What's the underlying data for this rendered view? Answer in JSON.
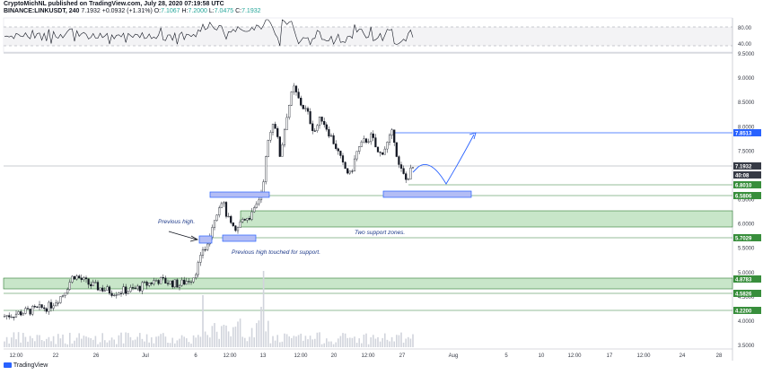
{
  "header": {
    "publisher_line": "CryptoMichNL published on TradingView.com, July 28, 2020 07:19:58 UTC",
    "symbol": "BINANCE:LINKUSDT, 240",
    "last": "7.1932",
    "change": "+0.0932 (+1.31%)",
    "o_label": "O:",
    "o_value": "7.1067",
    "h_label": "H:",
    "h_value": "7.2000",
    "l_label": "L:",
    "l_value": "7.0475",
    "c_label": "C:",
    "c_value": "7.1932"
  },
  "rsi_axis": [
    "80.00",
    "40.00"
  ],
  "price_axis": {
    "ticks": [
      "9.5000",
      "9.0000",
      "8.5000",
      "8.0000",
      "7.5000",
      "7.0000",
      "6.5000",
      "6.0000",
      "5.5000",
      "5.0000",
      "4.5000",
      "4.0000",
      "3.5000"
    ],
    "labels": [
      {
        "text": "7.8513",
        "color": "#2962ff"
      },
      {
        "text": "7.1932",
        "color": "#363a45"
      },
      {
        "text": "40:08",
        "color": "#363a45"
      },
      {
        "text": "6.8010",
        "color": "#388e3c"
      },
      {
        "text": "6.5806",
        "color": "#388e3c"
      },
      {
        "text": "5.7029",
        "color": "#388e3c"
      },
      {
        "text": "4.8783",
        "color": "#388e3c"
      },
      {
        "text": "4.5826",
        "color": "#388e3c"
      },
      {
        "text": "4.2200",
        "color": "#388e3c"
      }
    ]
  },
  "time_axis": [
    "12:00",
    "22",
    "26",
    "Jul",
    "6",
    "12:00",
    "13",
    "12:00",
    "20",
    "12:00",
    "27",
    "Aug",
    "5",
    "10",
    "12:00",
    "17",
    "12:00",
    "24",
    "28"
  ],
  "annotations": {
    "previous_high": "Previous high.",
    "touched": "Previous high touched for support.",
    "two_zones": "Two support zones."
  },
  "colors": {
    "candle": "#131722",
    "support": "#2e7d32",
    "zone_fill": "#c8e6c9",
    "box_fill": "#b3bdf5",
    "projection": "#2962ff"
  },
  "footer": {
    "logo": "TradingView"
  }
}
